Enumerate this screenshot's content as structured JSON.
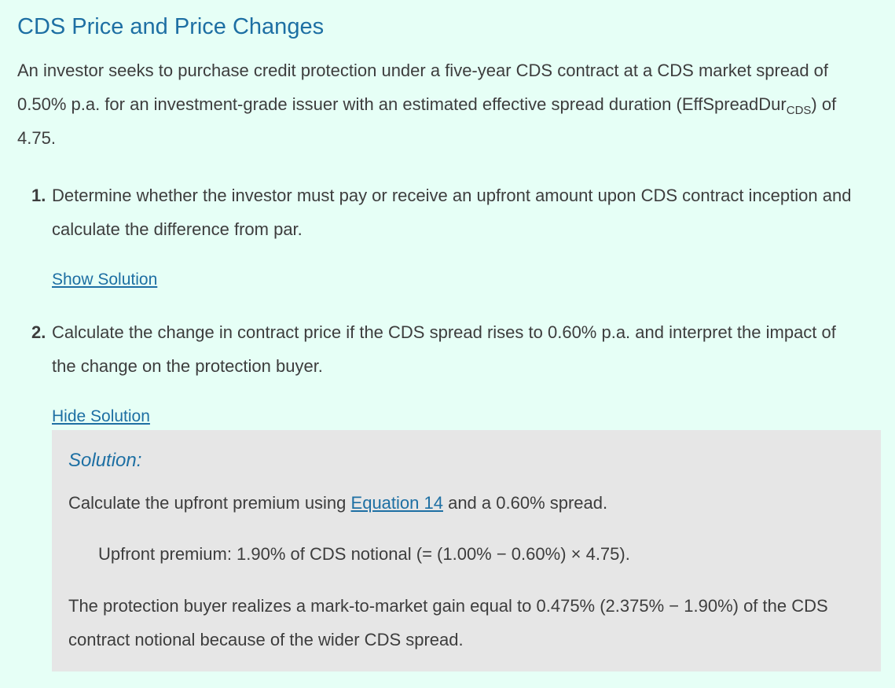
{
  "title": "CDS Price and Price Changes",
  "intro": {
    "text_before_sub": "An investor seeks to purchase credit protection under a five-year CDS contract at a CDS market spread of 0.50% p.a. for an investment-grade issuer with an estimated effective spread duration (EffSpreadDur",
    "subscript": "CDS",
    "text_after_sub": ") of 4.75."
  },
  "questions": [
    {
      "number": "1.",
      "text": "Determine whether the investor must pay or receive an upfront amount upon CDS contract inception and calculate the difference from par.",
      "toggle_label": "Show Solution"
    },
    {
      "number": "2.",
      "text": "Calculate the change in contract price if the CDS spread rises to 0.60% p.a. and interpret the impact of the change on the protection buyer.",
      "toggle_label": "Hide Solution"
    }
  ],
  "solution": {
    "label": "Solution:",
    "line1_before": "Calculate the upfront premium using ",
    "line1_link": "Equation 14",
    "line1_after": " and a 0.60% spread.",
    "formula": "Upfront premium: 1.90% of CDS notional (= (1.00% − 0.60%) × 4.75).",
    "conclusion": "The protection buyer realizes a mark-to-market gain equal to 0.475% (2.375% − 1.90%) of the CDS contract notional because of the wider CDS spread."
  }
}
